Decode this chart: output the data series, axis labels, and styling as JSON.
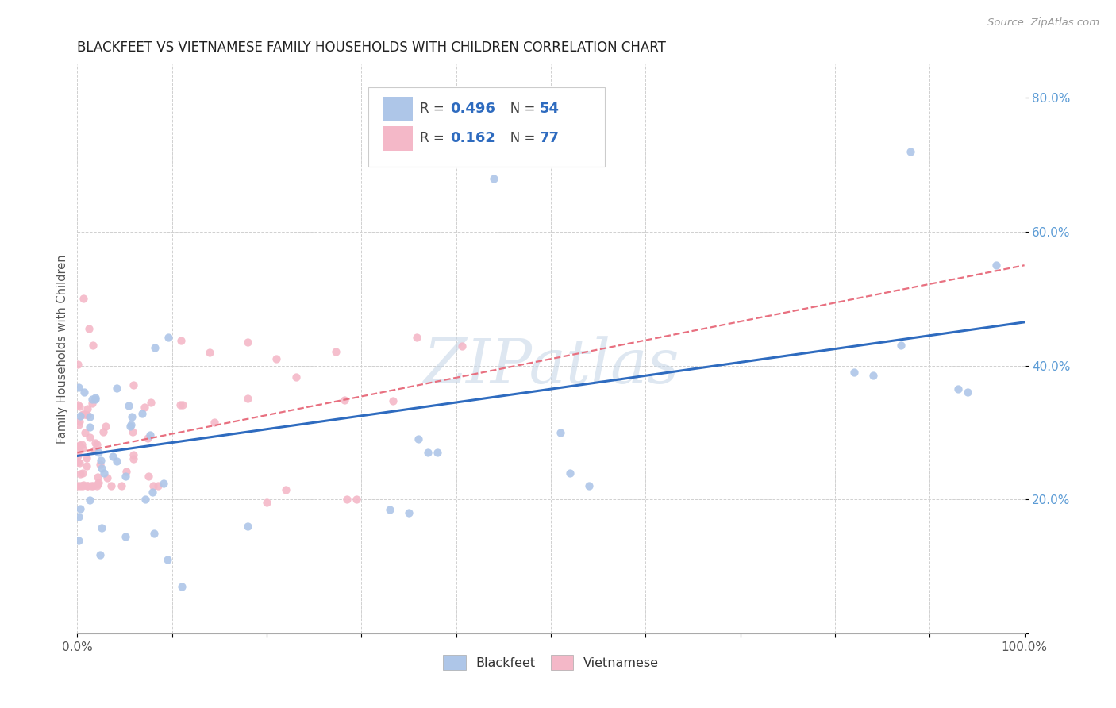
{
  "title": "BLACKFEET VS VIETNAMESE FAMILY HOUSEHOLDS WITH CHILDREN CORRELATION CHART",
  "source": "Source: ZipAtlas.com",
  "ylabel": "Family Households with Children",
  "xlim": [
    0,
    1.0
  ],
  "ylim": [
    0,
    0.85
  ],
  "x_ticks": [
    0.0,
    0.1,
    0.2,
    0.3,
    0.4,
    0.5,
    0.6,
    0.7,
    0.8,
    0.9,
    1.0
  ],
  "x_tick_labels": [
    "0.0%",
    "",
    "",
    "",
    "",
    "",
    "",
    "",
    "",
    "",
    "100.0%"
  ],
  "y_ticks": [
    0.0,
    0.2,
    0.4,
    0.6,
    0.8
  ],
  "y_tick_labels": [
    "",
    "20.0%",
    "40.0%",
    "60.0%",
    "80.0%"
  ],
  "blackfeet_R": 0.496,
  "blackfeet_N": 54,
  "vietnamese_R": 0.162,
  "vietnamese_N": 77,
  "blackfeet_color": "#aec6e8",
  "vietnamese_color": "#f4b8c8",
  "blackfeet_line_color": "#2e6bbf",
  "vietnamese_line_color": "#e87080",
  "watermark": "ZIPatlas",
  "bf_line_x0": 0.0,
  "bf_line_y0": 0.265,
  "bf_line_x1": 1.0,
  "bf_line_y1": 0.465,
  "viet_line_x0": 0.0,
  "viet_line_y0": 0.27,
  "viet_line_x1": 1.0,
  "viet_line_y1": 0.55
}
